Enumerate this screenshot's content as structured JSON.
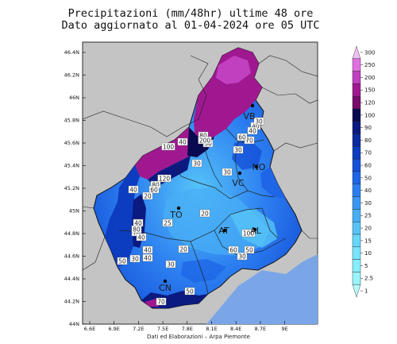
{
  "title_line1": "Precipitazioni (mm/48hr) ultime 48 ore",
  "title_line2": "Dato aggiornato al 01-04-2024 ore 05 UTC",
  "credit": "Dati ed Elaborazioni – Arpa Piemonte",
  "lon_ticks": [
    "6.6E",
    "6.9E",
    "7.2E",
    "7.5E",
    "7.8E",
    "8.1E",
    "8.4E",
    "8.7E",
    "9E"
  ],
  "lat_ticks": [
    "46.4N",
    "46.2N",
    "46N",
    "45.8N",
    "45.6N",
    "45.4N",
    "45.2N",
    "45N",
    "44.8N",
    "44.6N",
    "44.4N",
    "44.2N",
    "44N"
  ],
  "colorbar": {
    "labels": [
      "300",
      "250",
      "200",
      "150",
      "120",
      "100",
      "90",
      "80",
      "70",
      "60",
      "50",
      "40",
      "30",
      "25",
      "20",
      "15",
      "10",
      "5",
      "2.5",
      "1"
    ],
    "colors": [
      "#f0c0f0",
      "#e070e0",
      "#c040c0",
      "#a01890",
      "#7a0a6e",
      "#0a0a50",
      "#0a1a80",
      "#0a2aa0",
      "#0c3cc0",
      "#1450d8",
      "#1e66e6",
      "#2c7ef0",
      "#3a96f4",
      "#48aef6",
      "#56c4f8",
      "#66d6fa",
      "#76e4fc",
      "#86eefc",
      "#9af4fc",
      "#b6fafc"
    ]
  },
  "cities": [
    {
      "name": "VB"
    },
    {
      "name": "NO"
    },
    {
      "name": "VC"
    },
    {
      "name": "TO"
    },
    {
      "name": "AT"
    },
    {
      "name": "AL"
    },
    {
      "name": "CN"
    }
  ],
  "station_values": [
    "100",
    "40",
    "80",
    "30",
    "200",
    "70",
    "30",
    "60",
    "40",
    "30",
    "40",
    "120",
    "80",
    "60",
    "40",
    "20",
    "25",
    "20",
    "30",
    "30",
    "50",
    "30",
    "40",
    "70",
    "40",
    "40",
    "40",
    "50",
    "70",
    "30",
    "30",
    "60",
    "50",
    "100",
    "80",
    "20"
  ]
}
